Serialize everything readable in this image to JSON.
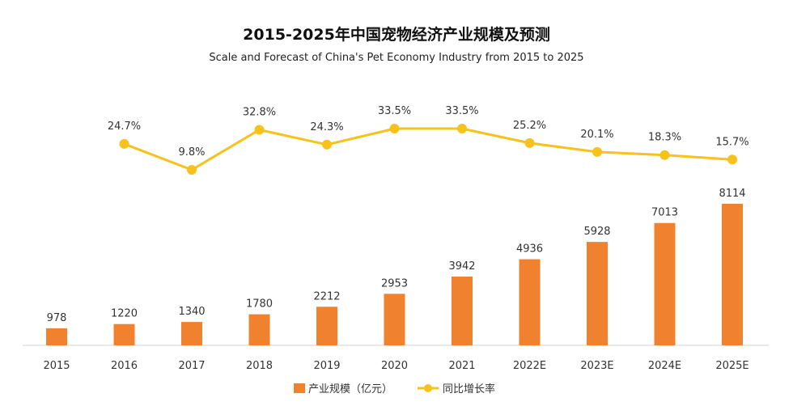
{
  "chart_data": {
    "type": "bar",
    "title": "2015-2025年中国宠物经济产业规模及预测",
    "subtitle": "Scale and Forecast of China's Pet Economy Industry from 2015 to 2025",
    "categories": [
      "2015",
      "2016",
      "2017",
      "2018",
      "2019",
      "2020",
      "2021",
      "2022E",
      "2023E",
      "2024E",
      "2025E"
    ],
    "series": [
      {
        "name": "产业规模（亿元）",
        "kind": "bar",
        "color": "#F0812F",
        "values": [
          978,
          1220,
          1340,
          1780,
          2212,
          2953,
          3942,
          4936,
          5928,
          7013,
          8114
        ],
        "labels": [
          "978",
          "1220",
          "1340",
          "1780",
          "2212",
          "2953",
          "3942",
          "4936",
          "5928",
          "7013",
          "8114"
        ]
      },
      {
        "name": "同比增长率",
        "kind": "line",
        "color": "#F6C21B",
        "values": [
          null,
          24.7,
          9.8,
          32.8,
          24.3,
          33.5,
          33.5,
          25.2,
          20.1,
          18.3,
          15.7
        ],
        "labels": [
          "",
          "24.7%",
          "9.8%",
          "32.8%",
          "24.3%",
          "33.5%",
          "33.5%",
          "25.2%",
          "20.1%",
          "18.3%",
          "15.7%"
        ]
      }
    ],
    "legend": "bottom-center",
    "grid": false
  }
}
